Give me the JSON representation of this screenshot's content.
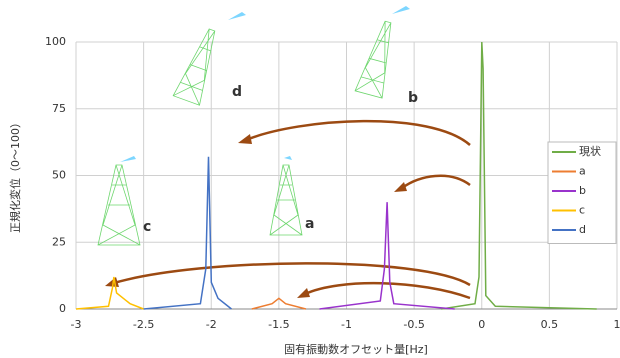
{
  "chart_data": {
    "type": "line",
    "xlabel": "固有振動数オフセット量[Hz]",
    "ylabel": "正規化変位（0～100）",
    "xlim": [
      -3,
      1
    ],
    "xticks": [
      -3,
      -2.5,
      -2,
      -1.5,
      -1,
      -0.5,
      0,
      0.5,
      1
    ],
    "ylim": [
      0,
      100
    ],
    "yticks": [
      0,
      25,
      50,
      75,
      100
    ],
    "grid": true,
    "legend": "right",
    "series": [
      {
        "name": "現状",
        "color": "#70ad47",
        "x": [
          -0.3,
          -0.05,
          -0.02,
          0,
          0.01,
          0.03,
          0.1,
          0.85
        ],
        "values": [
          0,
          2,
          12,
          100,
          90,
          5,
          1,
          0
        ]
      },
      {
        "name": "a",
        "color": "#ed7d31",
        "x": [
          -1.7,
          -1.55,
          -1.5,
          -1.45,
          -1.3
        ],
        "values": [
          0,
          2,
          4,
          2,
          0
        ]
      },
      {
        "name": "b",
        "color": "#9933cc",
        "x": [
          -1.2,
          -0.75,
          -0.72,
          -0.7,
          -0.68,
          -0.65,
          -0.2
        ],
        "values": [
          0,
          3,
          15,
          40,
          10,
          2,
          0
        ]
      },
      {
        "name": "c",
        "color": "#ffc000",
        "x": [
          -3,
          -2.76,
          -2.73,
          -2.72,
          -2.7,
          -2.6,
          -2.5
        ],
        "values": [
          0,
          1,
          8,
          12,
          6,
          2,
          0
        ]
      },
      {
        "name": "d",
        "color": "#4472c4",
        "x": [
          -2.5,
          -2.08,
          -2.04,
          -2.02,
          -2.0,
          -1.95,
          -1.85
        ],
        "values": [
          0,
          2,
          15,
          57,
          10,
          4,
          0
        ]
      }
    ],
    "annotations": [
      "d",
      "b",
      "c",
      "a"
    ]
  }
}
